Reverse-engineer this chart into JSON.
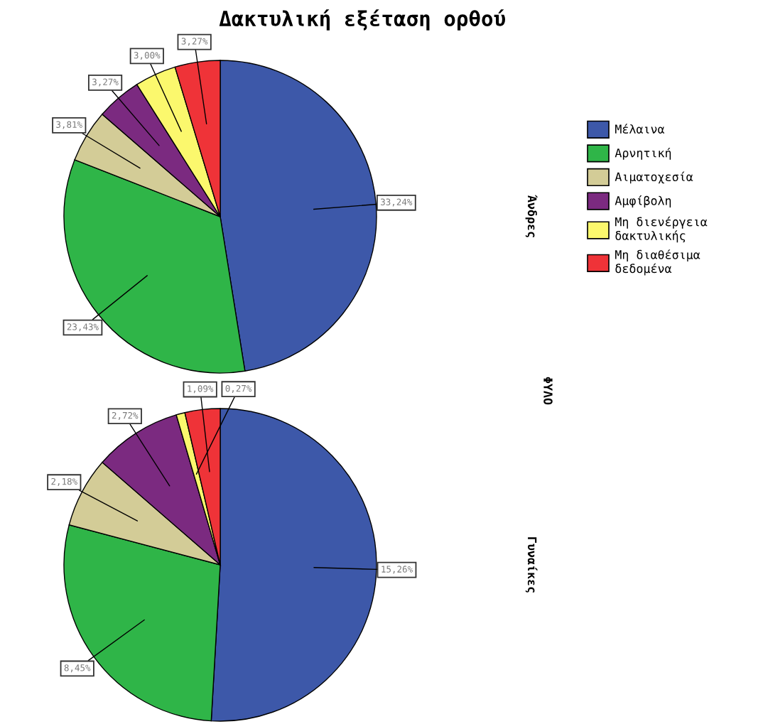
{
  "chart_data": [
    {
      "type": "pie",
      "title": "Δακτυλική εξέταση ορθού",
      "subtitle": "Άνδρες",
      "annotations": [
        "ΦΥΛΟ"
      ],
      "legend": "right",
      "categories": [
        "Μέλαινα",
        "Αρνητική",
        "Αιματοχεσία",
        "Αμφίβολη",
        "Μη διενέργεια\nδακτυλικής",
        "Μη διαθέσιμα\nδεδομένα"
      ],
      "values": [
        33.24,
        23.43,
        3.81,
        3.27,
        3.0,
        3.27
      ],
      "value_labels": [
        "33,24%",
        "23,43%",
        "3,81%",
        "3,27%",
        "3,00%",
        "3,27%"
      ],
      "colors": [
        "#3d58a9",
        "#2fb548",
        "#d3cc97",
        "#7b2a80",
        "#fbf86d",
        "#ef3338"
      ]
    },
    {
      "type": "pie",
      "subtitle": "Γυναίκες",
      "categories": [
        null,
        null,
        null,
        null,
        null,
        null
      ],
      "values": [
        15.26,
        8.45,
        2.18,
        2.72,
        0.27,
        1.09
      ],
      "value_labels": [
        "15,26%",
        "8,45%",
        "2,18%",
        "2,72%",
        "0,27%",
        "1,09%"
      ],
      "colors": [
        "#3d58a9",
        "#2fb548",
        "#d3cc97",
        "#7b2a80",
        "#fbf86d",
        "#ef3338"
      ]
    }
  ]
}
